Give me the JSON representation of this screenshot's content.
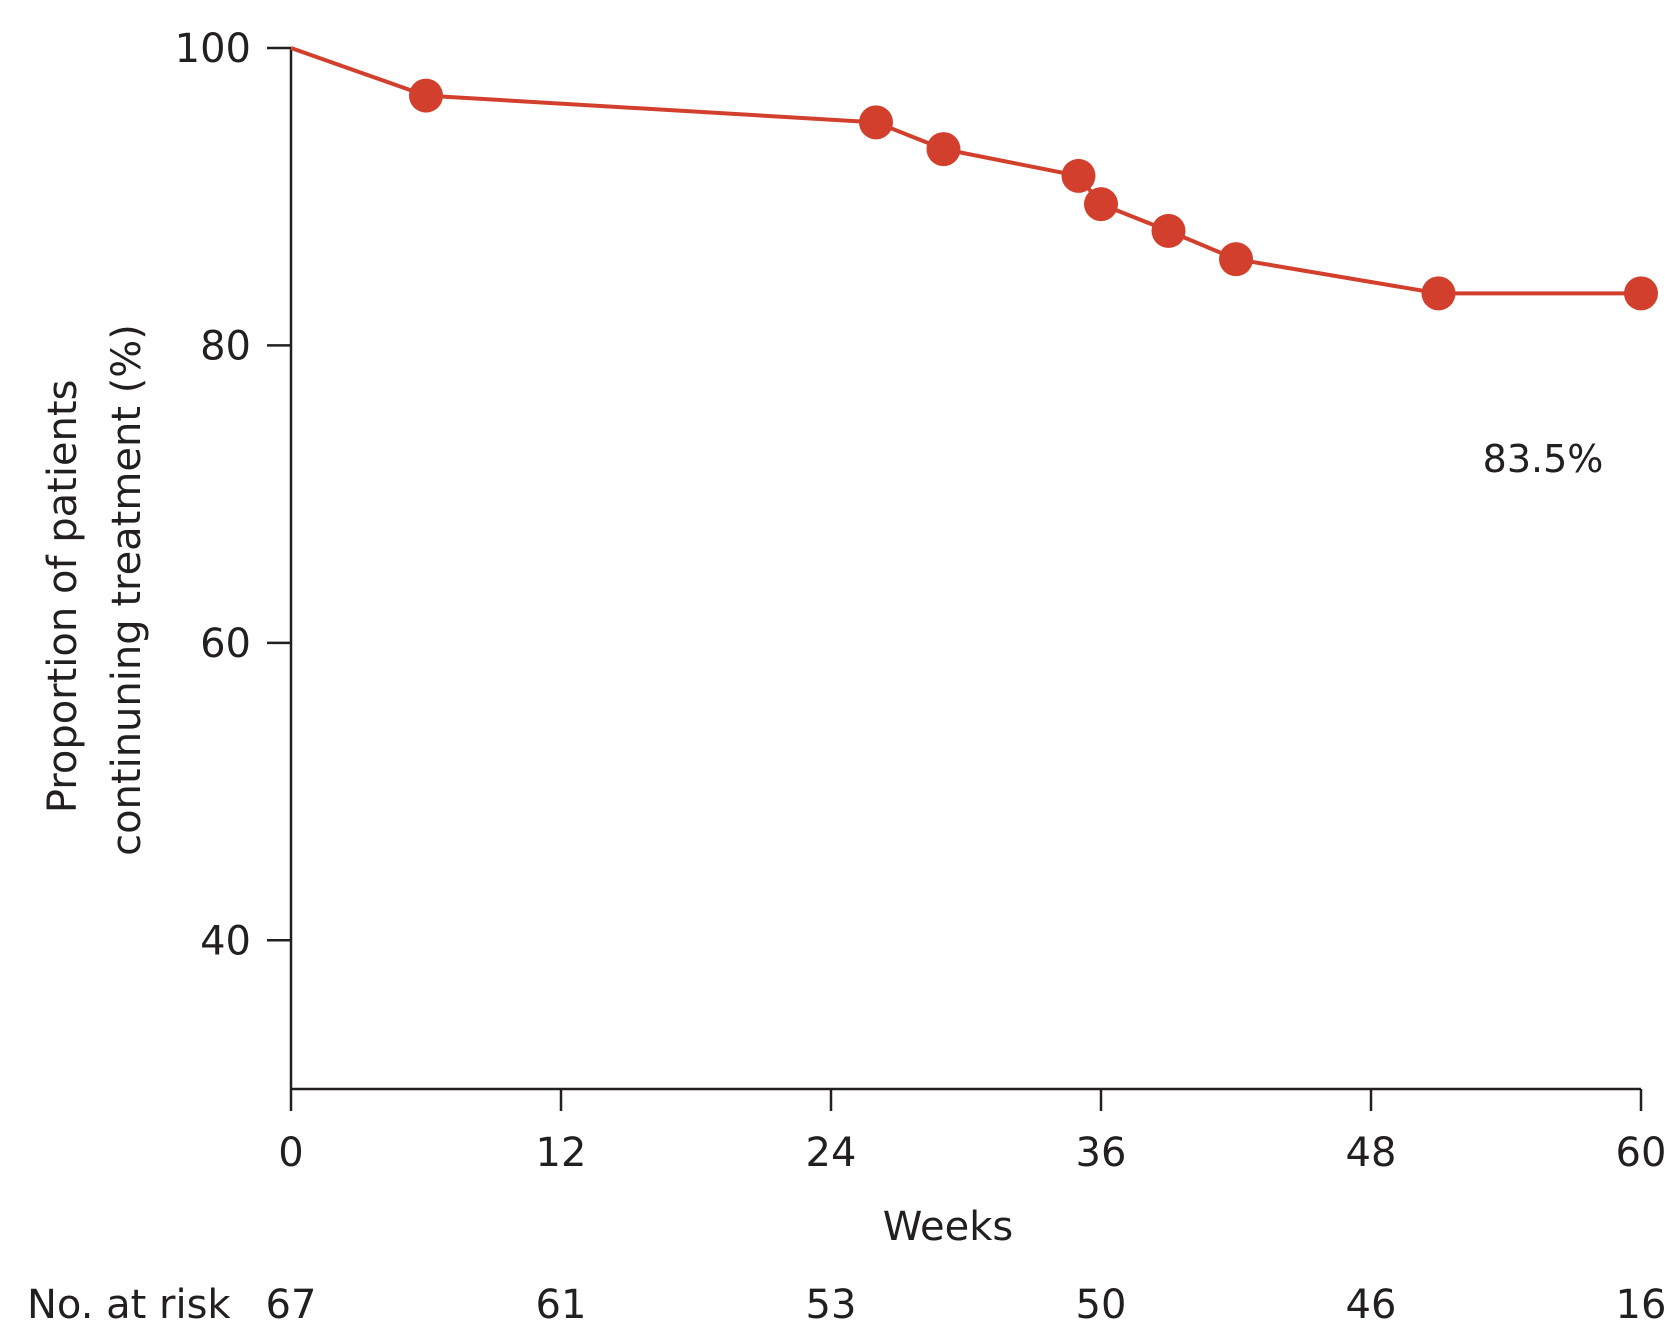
{
  "chart_data": {
    "type": "line",
    "xlabel": "Weeks",
    "ylabel_lines": [
      "Proportion of patients",
      "continuning treatment (%)"
    ],
    "xlim": [
      0,
      60
    ],
    "ylim": [
      30,
      100
    ],
    "x_ticks": [
      0,
      12,
      24,
      36,
      48,
      60
    ],
    "y_ticks": [
      40,
      60,
      80,
      100
    ],
    "grid": false,
    "line_color": "#d2402d",
    "curve": [
      {
        "x": 0,
        "y": 100
      },
      {
        "x": 6,
        "y": 96.8
      },
      {
        "x": 26,
        "y": 95
      },
      {
        "x": 29,
        "y": 93.2
      },
      {
        "x": 35,
        "y": 91.4
      },
      {
        "x": 36,
        "y": 89.5
      },
      {
        "x": 39,
        "y": 87.7
      },
      {
        "x": 42,
        "y": 85.8
      },
      {
        "x": 51,
        "y": 83.5
      },
      {
        "x": 60,
        "y": 83.5
      }
    ],
    "markers": [
      {
        "x": 6,
        "y": 96.8
      },
      {
        "x": 26,
        "y": 95
      },
      {
        "x": 29,
        "y": 93.2
      },
      {
        "x": 35,
        "y": 91.4
      },
      {
        "x": 36,
        "y": 89.5
      },
      {
        "x": 39,
        "y": 87.7
      },
      {
        "x": 42,
        "y": 85.8
      },
      {
        "x": 51,
        "y": 83.5
      },
      {
        "x": 60,
        "y": 83.5
      }
    ],
    "annotation": "83.5%",
    "risk_table": {
      "label": "No. at risk",
      "weeks": [
        0,
        12,
        24,
        36,
        48,
        60
      ],
      "counts": [
        "67",
        "61",
        "53",
        "50",
        "46",
        "16"
      ]
    }
  }
}
